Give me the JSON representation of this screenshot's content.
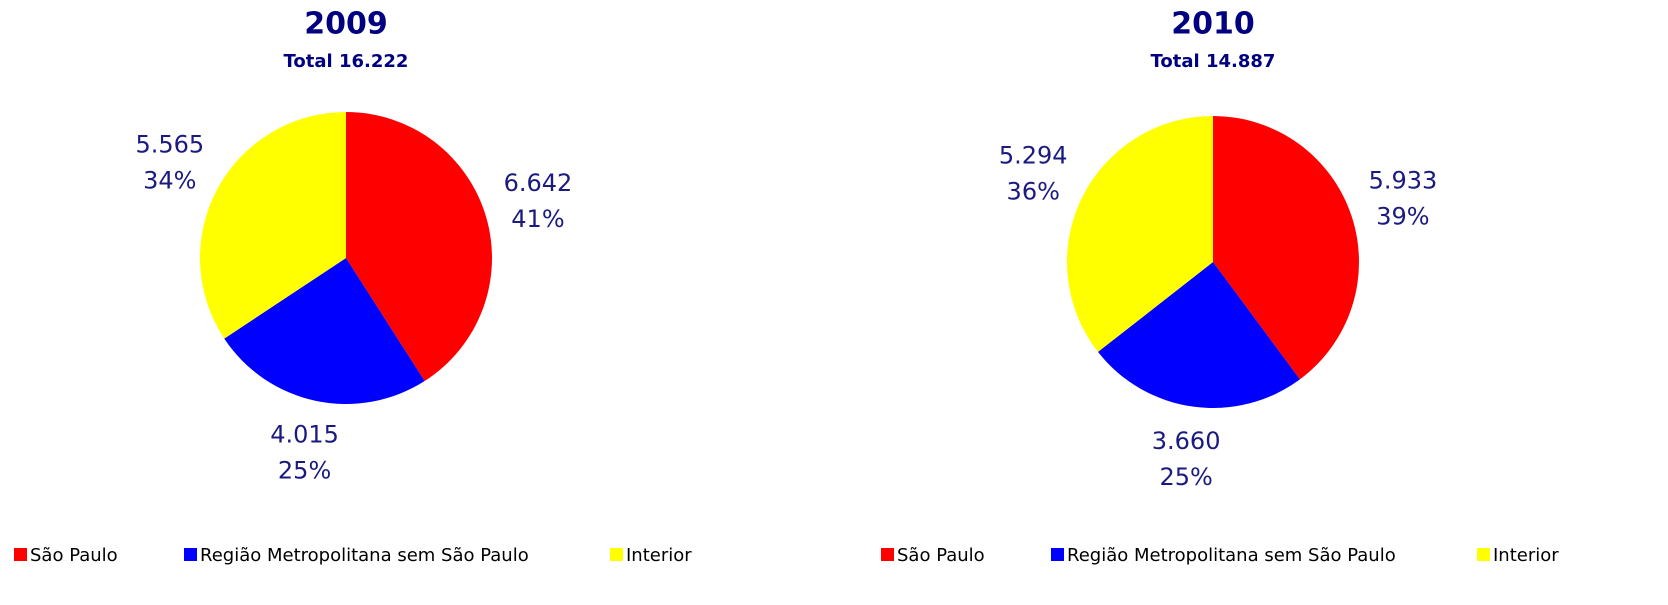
{
  "chart_data": [
    {
      "type": "pie",
      "title": "2009",
      "subtitle": "Total 16.222",
      "categories": [
        "São Paulo",
        "Região Metropolitana sem São Paulo",
        "Interior"
      ],
      "colors": [
        "#ff0000",
        "#0000ff",
        "#ffff00"
      ],
      "values": [
        6642,
        4015,
        5565
      ],
      "value_labels": [
        "6.642",
        "4.015",
        "5.565"
      ],
      "shares": [
        41,
        25,
        34
      ],
      "share_labels": [
        "41%",
        "25%",
        "34%"
      ]
    },
    {
      "type": "pie",
      "title": "2010",
      "subtitle": "Total 14.887",
      "categories": [
        "São Paulo",
        "Região Metropolitana sem São Paulo",
        "Interior"
      ],
      "colors": [
        "#ff0000",
        "#0000ff",
        "#ffff00"
      ],
      "values": [
        5933,
        3660,
        5294
      ],
      "value_labels": [
        "5.933",
        "3.660",
        "5.294"
      ],
      "shares": [
        39,
        25,
        36
      ],
      "share_labels": [
        "39%",
        "25%",
        "36%"
      ]
    }
  ]
}
